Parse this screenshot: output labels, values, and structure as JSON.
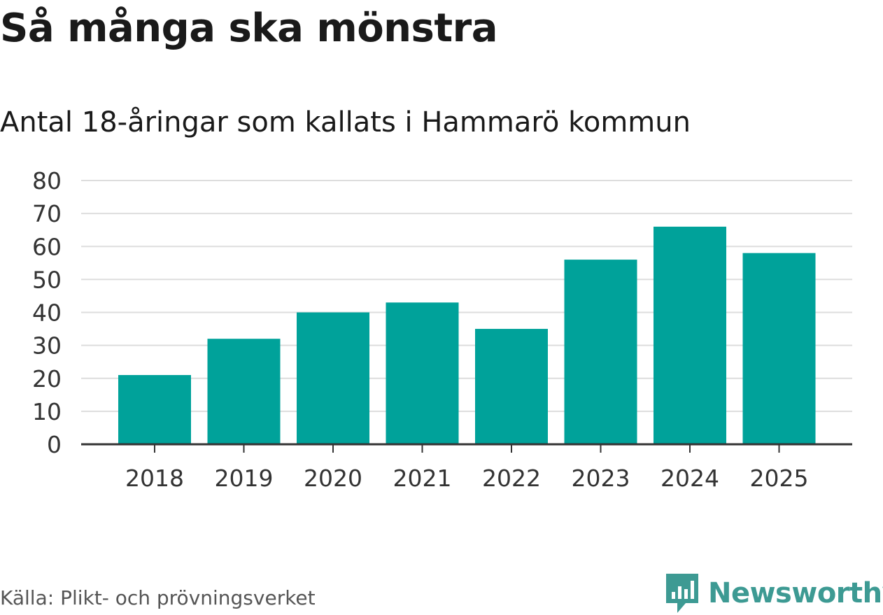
{
  "title": "Så många ska mönstra",
  "subtitle": "Antal 18-åringar som kallats i Hammarö kommun",
  "source": "Källa: Plikt- och prövningsverket",
  "brand": "Newsworthy",
  "colors": {
    "bar": "#00a29a",
    "brand": "#3d9a93",
    "grid": "#dddddd",
    "axis": "#333333"
  },
  "chart_data": {
    "type": "bar",
    "title": "Så många ska mönstra",
    "subtitle": "Antal 18-åringar som kallats i Hammarö kommun",
    "categories": [
      "2018",
      "2019",
      "2020",
      "2021",
      "2022",
      "2023",
      "2024",
      "2025"
    ],
    "values": [
      21,
      32,
      40,
      43,
      35,
      56,
      66,
      58
    ],
    "xlabel": "",
    "ylabel": "",
    "ylim": [
      0,
      80
    ],
    "yticks": [
      0,
      10,
      20,
      30,
      40,
      50,
      60,
      70,
      80
    ],
    "grid": true
  }
}
